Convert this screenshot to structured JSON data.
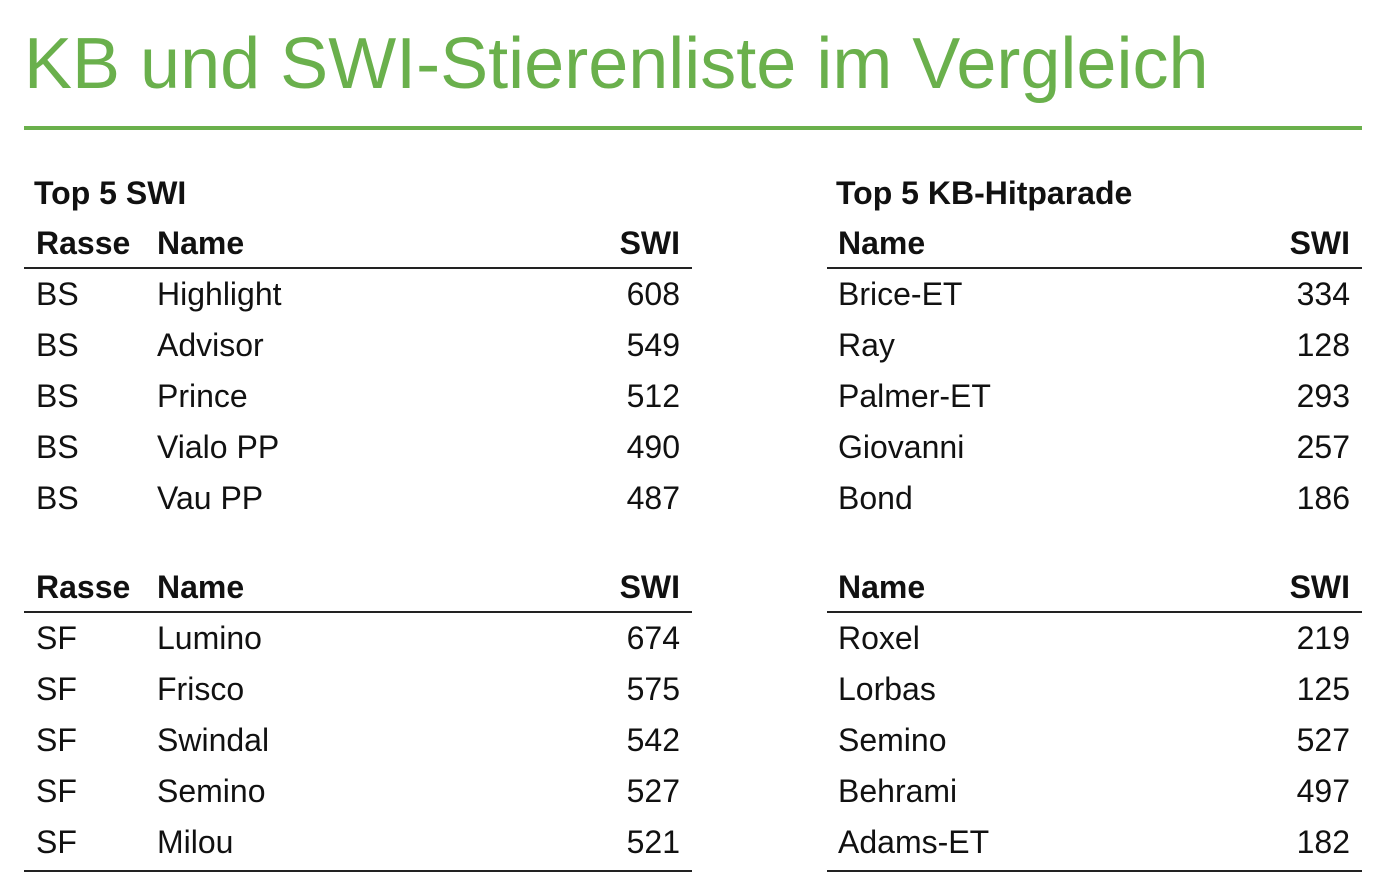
{
  "title": "KB und SWI-Stierenliste im Vergleich",
  "left": {
    "heading": "Top 5 SWI",
    "tables": [
      {
        "header": [
          "Rasse",
          "Name",
          "SWI"
        ],
        "rows": [
          [
            "BS",
            "Highlight",
            608
          ],
          [
            "BS",
            "Advisor",
            549
          ],
          [
            "BS",
            "Prince",
            512
          ],
          [
            "BS",
            "Vialo PP",
            490
          ],
          [
            "BS",
            "Vau PP",
            487
          ]
        ]
      },
      {
        "header": [
          "Rasse",
          "Name",
          "SWI"
        ],
        "rows": [
          [
            "SF",
            "Lumino",
            674
          ],
          [
            "SF",
            "Frisco",
            575
          ],
          [
            "SF",
            "Swindal",
            542
          ],
          [
            "SF",
            "Semino",
            527
          ],
          [
            "SF",
            "Milou",
            521
          ]
        ]
      }
    ]
  },
  "right": {
    "heading": "Top 5 KB-Hitparade",
    "tables": [
      {
        "header": [
          "Name",
          "SWI"
        ],
        "rows": [
          [
            "Brice-ET",
            334
          ],
          [
            "Ray",
            128
          ],
          [
            "Palmer-ET",
            293
          ],
          [
            "Giovanni",
            257
          ],
          [
            "Bond",
            186
          ]
        ]
      },
      {
        "header": [
          "Name",
          "SWI"
        ],
        "rows": [
          [
            "Roxel",
            219
          ],
          [
            "Lorbas",
            125
          ],
          [
            "Semino",
            527
          ],
          [
            "Behrami",
            497
          ],
          [
            "Adams-ET",
            182
          ]
        ]
      }
    ]
  }
}
